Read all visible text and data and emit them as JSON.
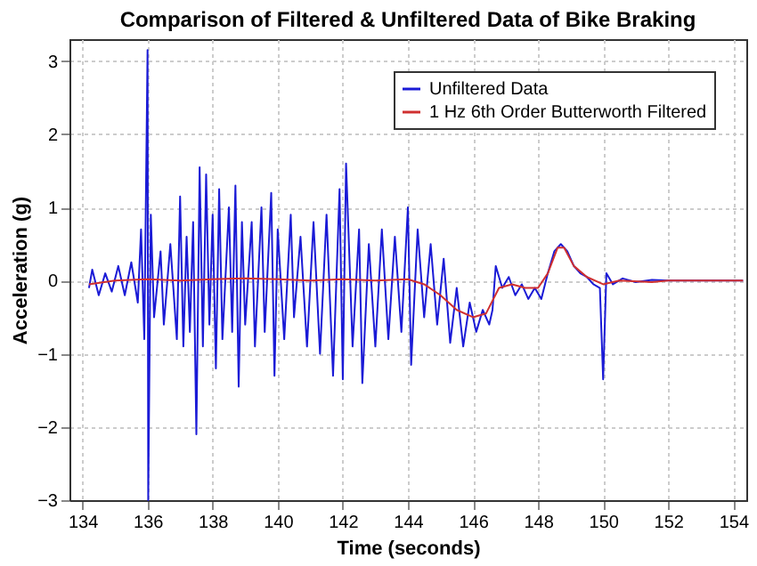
{
  "chart_data": {
    "type": "line",
    "title": "Comparison of Filtered & Unfiltered Data of Bike Braking",
    "xlabel": "Time (seconds)",
    "ylabel": "Acceleration (g)",
    "xlim": [
      133.6,
      154.4
    ],
    "ylim": [
      -3,
      3.3
    ],
    "xticks": [
      134,
      136,
      138,
      140,
      142,
      144,
      146,
      148,
      150,
      152,
      154
    ],
    "yticks": [
      -3,
      -2,
      -1,
      0,
      1,
      2,
      3
    ],
    "grid": true,
    "legend": "top right",
    "line_style": "solid",
    "marker": "none",
    "series": [
      {
        "name": "Unfiltered Data",
        "color": "#1a1ad6",
        "x": [
          134.2,
          134.3,
          134.5,
          134.7,
          134.9,
          135.1,
          135.3,
          135.5,
          135.7,
          135.8,
          135.9,
          136.0,
          136.02,
          136.1,
          136.2,
          136.4,
          136.5,
          136.7,
          136.9,
          137.0,
          137.1,
          137.2,
          137.3,
          137.4,
          137.5,
          137.6,
          137.7,
          137.8,
          137.9,
          138.0,
          138.1,
          138.2,
          138.3,
          138.5,
          138.6,
          138.7,
          138.8,
          138.9,
          139.0,
          139.2,
          139.3,
          139.5,
          139.6,
          139.8,
          139.9,
          140.0,
          140.2,
          140.4,
          140.5,
          140.7,
          140.9,
          141.1,
          141.3,
          141.5,
          141.7,
          141.9,
          142.0,
          142.1,
          142.3,
          142.5,
          142.6,
          142.8,
          143.0,
          143.2,
          143.4,
          143.6,
          143.8,
          144.0,
          144.1,
          144.3,
          144.5,
          144.7,
          144.9,
          145.1,
          145.3,
          145.5,
          145.7,
          145.9,
          146.1,
          146.3,
          146.5,
          146.6,
          146.7,
          146.9,
          147.1,
          147.3,
          147.5,
          147.7,
          147.9,
          148.1,
          148.3,
          148.5,
          148.7,
          148.9,
          149.1,
          149.3,
          149.5,
          149.7,
          149.9,
          150.0,
          150.1,
          150.3,
          150.6,
          151.0,
          151.5,
          152,
          153,
          154.3
        ],
        "values": [
          -0.1,
          0.15,
          -0.2,
          0.1,
          -0.15,
          0.2,
          -0.2,
          0.25,
          -0.3,
          0.7,
          -0.8,
          3.15,
          -3.0,
          0.9,
          -0.5,
          0.4,
          -0.6,
          0.5,
          -0.8,
          1.15,
          -0.9,
          0.6,
          -0.7,
          0.8,
          -2.1,
          1.55,
          -0.9,
          1.45,
          -0.6,
          0.9,
          -1.2,
          1.25,
          -0.8,
          1.0,
          -0.7,
          1.3,
          -1.45,
          0.8,
          -0.6,
          0.8,
          -0.9,
          1.0,
          -0.7,
          1.2,
          -1.3,
          0.7,
          -0.8,
          0.9,
          -0.5,
          0.6,
          -0.9,
          0.8,
          -1.0,
          0.9,
          -1.3,
          1.25,
          -1.35,
          1.6,
          -0.9,
          0.7,
          -1.4,
          0.5,
          -0.9,
          0.7,
          -0.8,
          0.6,
          -0.7,
          1.0,
          -1.15,
          0.7,
          -0.5,
          0.5,
          -0.6,
          0.3,
          -0.85,
          -0.1,
          -0.9,
          -0.3,
          -0.7,
          -0.4,
          -0.6,
          -0.4,
          0.2,
          -0.1,
          0.05,
          -0.2,
          -0.05,
          -0.25,
          -0.1,
          -0.25,
          0.1,
          0.4,
          0.5,
          0.4,
          0.2,
          0.1,
          0.05,
          -0.05,
          -0.1,
          -1.35,
          0.1,
          -0.05,
          0.03,
          -0.02,
          0.01,
          0.0,
          0.0,
          0.0
        ]
      },
      {
        "name": "1 Hz 6th Order Butterworth Filtered",
        "color": "#d03030",
        "x": [
          134.2,
          135,
          136,
          137,
          138,
          139,
          140,
          141,
          142,
          143,
          144,
          144.5,
          145,
          145.5,
          146,
          146.4,
          146.8,
          147.2,
          147.6,
          148,
          148.3,
          148.6,
          148.8,
          149.1,
          149.5,
          150,
          150.5,
          151.5,
          152,
          154.3
        ],
        "values": [
          -0.05,
          0.0,
          0.02,
          0.0,
          0.02,
          0.03,
          0.02,
          0.0,
          0.02,
          0.0,
          0.02,
          -0.05,
          -0.2,
          -0.4,
          -0.5,
          -0.45,
          -0.1,
          -0.05,
          -0.1,
          -0.1,
          0.1,
          0.45,
          0.45,
          0.2,
          0.05,
          -0.05,
          0.0,
          -0.02,
          0.0,
          0.0
        ]
      }
    ]
  }
}
